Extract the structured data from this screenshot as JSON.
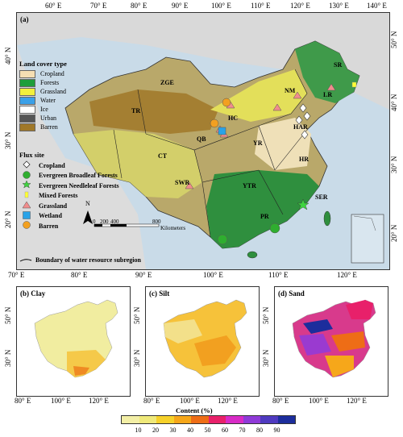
{
  "main_panel": {
    "label": "(a)",
    "top_lon_ticks": [
      "60° E",
      "70° E",
      "80° E",
      "90° E",
      "100° E",
      "110° E",
      "120° E",
      "130° E",
      "140° E"
    ],
    "bottom_lon_ticks": [
      "70° E",
      "80° E",
      "90° E",
      "100° E",
      "110° E",
      "120° E"
    ],
    "left_lat_ticks": [
      "40° N",
      "30° N",
      "20° N"
    ],
    "right_lat_ticks": [
      "50° N",
      "40° N",
      "30° N",
      "20° N"
    ],
    "scale": {
      "ticks": [
        "0",
        "200",
        "400",
        "800"
      ],
      "unit": "Kilometers"
    },
    "north_arrow": "N",
    "regions": [
      "SR",
      "ZGE",
      "NM",
      "LR",
      "TR",
      "HC",
      "HAR",
      "QB",
      "YR",
      "CT",
      "HR",
      "SWR",
      "YTR",
      "SER",
      "PR"
    ]
  },
  "land_cover": {
    "title": "Land cover type",
    "items": [
      {
        "label": "Cropland",
        "color": "#f5deb3"
      },
      {
        "label": "Forests",
        "color": "#1e9e3a"
      },
      {
        "label": "Grassland",
        "color": "#f2f03c"
      },
      {
        "label": "Water",
        "color": "#3aa0e8"
      },
      {
        "label": "Ice",
        "color": "#ffffff"
      },
      {
        "label": "Urban",
        "color": "#555555"
      },
      {
        "label": "Barren",
        "color": "#a07828"
      }
    ]
  },
  "flux_site": {
    "title": "Flux site",
    "items": [
      {
        "label": "Cropland",
        "icon": "diamond-icon"
      },
      {
        "label": "Evergreen Broadleaf Forests",
        "icon": "circle-icon"
      },
      {
        "label": "Evergreen Needleleaf Forests",
        "icon": "star-icon"
      },
      {
        "label": "Mixed Forests",
        "icon": "square-icon"
      },
      {
        "label": "Grassland",
        "icon": "triangle-icon"
      },
      {
        "label": "Wetland",
        "icon": "square-icon"
      },
      {
        "label": "Barren",
        "icon": "circle-icon"
      }
    ],
    "boundary_label": "Boundary of water resource subregion"
  },
  "sub_panels": [
    {
      "label": "(b) Clay",
      "x_ticks": [
        "80° E",
        "100° E",
        "120° E"
      ],
      "y_ticks": [
        "50° N",
        "30° N"
      ]
    },
    {
      "label": "(c) Silt",
      "x_ticks": [
        "80° E",
        "100° E",
        "120° E"
      ],
      "y_ticks": [
        "50° N",
        "30° N"
      ]
    },
    {
      "label": "(d) Sand",
      "x_ticks": [
        "80° E",
        "100° E",
        "120° E"
      ],
      "y_ticks": [
        "50° N",
        "30° N"
      ]
    }
  ],
  "colorbar": {
    "title": "Content (%)",
    "ticks": [
      "10",
      "20",
      "30",
      "40",
      "50",
      "60",
      "70",
      "80",
      "90"
    ],
    "colors": [
      "#f3efa6",
      "#efe97a",
      "#f6d12a",
      "#f6a71a",
      "#ee6d16",
      "#e8206a",
      "#d82bc6",
      "#8f3ad8",
      "#4f3ac0",
      "#1c2d9c"
    ]
  }
}
